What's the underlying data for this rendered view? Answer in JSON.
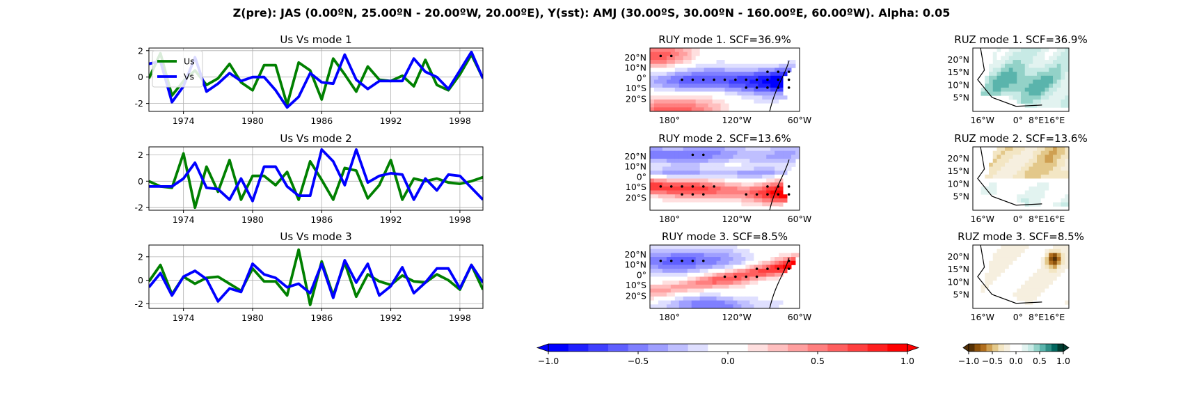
{
  "suptitle": "Z(pre): JAS (0.00ºN, 25.00ºN - 20.00ºW, 20.00ºE), Y(sst): AMJ (30.00ºS, 30.00ºN - 160.00ºE, 60.00ºW). Alpha: 0.05",
  "colors": {
    "us": "#008000",
    "vs": "#0000ff",
    "grid": "#b0b0b0"
  },
  "chart_data": [
    {
      "type": "line",
      "title": "Us Vs mode 1",
      "x": [
        1971,
        1972,
        1973,
        1974,
        1975,
        1976,
        1977,
        1978,
        1979,
        1980,
        1981,
        1982,
        1983,
        1984,
        1985,
        1986,
        1987,
        1988,
        1989,
        1990,
        1991,
        1992,
        1993,
        1994,
        1995,
        1996,
        1997,
        1998,
        1999,
        2000
      ],
      "series": [
        {
          "name": "Us",
          "values": [
            -0.1,
            1.8,
            -1.4,
            -0.3,
            0.5,
            -0.6,
            -0.1,
            1.0,
            -0.4,
            -1.0,
            0.9,
            0.9,
            -2.1,
            1.1,
            0.5,
            -1.7,
            1.4,
            0.2,
            -1.1,
            0.8,
            -0.2,
            -0.3,
            0.1,
            -0.7,
            1.3,
            -0.6,
            -1.0,
            0.2,
            1.7,
            -0.1
          ]
        },
        {
          "name": "Vs",
          "values": [
            1.0,
            1.2,
            -1.9,
            -0.7,
            1.5,
            -1.1,
            -0.5,
            0.3,
            -0.3,
            0.0,
            0.0,
            -1.0,
            -2.3,
            -1.5,
            0.3,
            -0.4,
            -0.5,
            1.7,
            -0.2,
            -0.9,
            -0.3,
            -0.3,
            -0.3,
            1.4,
            0.4,
            0.0,
            -0.9,
            0.5,
            1.9,
            -0.1
          ]
        }
      ],
      "xticks": [
        1974,
        1980,
        1986,
        1992,
        1998
      ],
      "yticks": [
        -2,
        0,
        2
      ],
      "xlim": [
        1971,
        2000
      ],
      "ylim": [
        -2.6,
        2.2
      ],
      "legend": "top-left",
      "grid": true
    },
    {
      "type": "line",
      "title": "Us Vs mode 2",
      "x": [
        1971,
        1972,
        1973,
        1974,
        1975,
        1976,
        1977,
        1978,
        1979,
        1980,
        1981,
        1982,
        1983,
        1984,
        1985,
        1986,
        1987,
        1988,
        1989,
        1990,
        1991,
        1992,
        1993,
        1994,
        1995,
        1996,
        1997,
        1998,
        1999,
        2000
      ],
      "series": [
        {
          "name": "Us",
          "values": [
            0.0,
            -0.4,
            -0.5,
            2.1,
            -2.0,
            1.1,
            -0.8,
            1.6,
            -1.4,
            0.4,
            0.4,
            -0.3,
            0.7,
            -1.4,
            1.5,
            0.1,
            -1.4,
            1.0,
            0.8,
            -1.3,
            -0.3,
            1.6,
            -1.4,
            0.2,
            0.0,
            0.2,
            -0.1,
            -0.2,
            0.0,
            0.3
          ]
        },
        {
          "name": "Vs",
          "values": [
            -0.4,
            -0.4,
            -0.4,
            0.2,
            1.4,
            -0.5,
            -0.6,
            -1.4,
            0.2,
            -1.5,
            1.1,
            1.1,
            -0.4,
            -1.1,
            -1.1,
            2.4,
            1.5,
            -0.3,
            2.4,
            -0.1,
            0.4,
            0.6,
            0.5,
            -1.4,
            0.2,
            -0.7,
            0.5,
            0.4,
            -0.5,
            -1.4
          ]
        }
      ],
      "xticks": [
        1974,
        1980,
        1986,
        1992,
        1998
      ],
      "yticks": [
        -2,
        0,
        2
      ],
      "xlim": [
        1971,
        2000
      ],
      "ylim": [
        -2.2,
        2.6
      ],
      "grid": true
    },
    {
      "type": "line",
      "title": "Us Vs mode 3",
      "x": [
        1971,
        1972,
        1973,
        1974,
        1975,
        1976,
        1977,
        1978,
        1979,
        1980,
        1981,
        1982,
        1983,
        1984,
        1985,
        1986,
        1987,
        1988,
        1989,
        1990,
        1991,
        1992,
        1993,
        1994,
        1995,
        1996,
        1997,
        1998,
        1999,
        2000
      ],
      "series": [
        {
          "name": "Us",
          "values": [
            -0.1,
            1.3,
            -1.2,
            0.3,
            -0.3,
            0.2,
            0.3,
            -0.3,
            -0.9,
            1.0,
            -0.1,
            -0.1,
            -1.3,
            2.6,
            -2.1,
            1.6,
            -1.3,
            1.5,
            -1.4,
            0.5,
            -0.1,
            -0.4,
            0.4,
            -0.1,
            -0.2,
            0.5,
            0.0,
            -0.8,
            1.3,
            -0.8
          ]
        },
        {
          "name": "Vs",
          "values": [
            -0.6,
            0.6,
            -1.3,
            0.3,
            0.8,
            0.1,
            -1.8,
            -0.7,
            -1.0,
            1.4,
            0.5,
            0.2,
            -0.6,
            -0.3,
            -1.1,
            1.4,
            -1.5,
            1.7,
            -0.2,
            1.4,
            -1.3,
            -0.5,
            1.1,
            -1.1,
            -0.2,
            1.0,
            1.0,
            -0.7,
            1.3,
            -0.2
          ]
        }
      ],
      "xticks": [
        1974,
        1980,
        1986,
        1992,
        1998
      ],
      "yticks": [
        -2,
        0,
        2
      ],
      "xlim": [
        1971,
        2000
      ],
      "ylim": [
        -2.4,
        3.0
      ],
      "grid": true
    },
    {
      "type": "heatmap",
      "title": "RUY mode 1. SCF=36.9%",
      "pattern": "cold-tongue-negative",
      "xticklabels": [
        "180°",
        "120°W",
        "60°W"
      ],
      "yticklabels": [
        "20°N",
        "10°N",
        "0°",
        "10°S",
        "20°S"
      ]
    },
    {
      "type": "heatmap",
      "title": "RUY mode 2. SCF=13.6%",
      "pattern": "southern-band-positive",
      "xticklabels": [
        "180°",
        "120°W",
        "60°W"
      ],
      "yticklabels": [
        "20°N",
        "10°N",
        "0°",
        "10°S",
        "20°S"
      ]
    },
    {
      "type": "heatmap",
      "title": "RUY mode 3. SCF=8.5%",
      "pattern": "equatorial-positive-band",
      "xticklabels": [
        "180°",
        "120°W",
        "60°W"
      ],
      "yticklabels": [
        "20°N",
        "10°N",
        "0°",
        "10°S",
        "20°S"
      ]
    },
    {
      "type": "heatmap",
      "title": "RUZ mode 1. SCF=36.9%",
      "pattern": "sahel-positive",
      "xticklabels": [
        "16°W",
        "0°",
        "8°E",
        "16°E"
      ],
      "yticklabels": [
        "20°N",
        "15°N",
        "10°N",
        "5°N"
      ]
    },
    {
      "type": "heatmap",
      "title": "RUZ mode 2. SCF=13.6%",
      "pattern": "north-negative-south-positive",
      "xticklabels": [
        "16°W",
        "0°",
        "8°E",
        "16°E"
      ],
      "yticklabels": [
        "20°N",
        "15°N",
        "10°N",
        "5°N"
      ]
    },
    {
      "type": "heatmap",
      "title": "RUZ mode 3. SCF=8.5%",
      "pattern": "weak-negative-with-spot",
      "xticklabels": [
        "16°W",
        "0°",
        "8°E",
        "16°E"
      ],
      "yticklabels": [
        "20°N",
        "15°N",
        "10°N",
        "5°N"
      ]
    }
  ],
  "colorbars": [
    {
      "name": "bwr",
      "colors": [
        "#0000ff",
        "#1f1fff",
        "#3f3fff",
        "#5f5fff",
        "#7f7fff",
        "#9f9fff",
        "#bfbfff",
        "#dfdfff",
        "#ffffff",
        "#ffffff",
        "#ffdfdf",
        "#ffbfbf",
        "#ff9f9f",
        "#ff7f7f",
        "#ff5f5f",
        "#ff3f3f",
        "#ff1f1f",
        "#ff0000"
      ],
      "ticklabels": [
        "−1.0",
        "−0.5",
        "0.0",
        "0.5",
        "1.0"
      ]
    },
    {
      "name": "BrBG",
      "colors": [
        "#543005",
        "#8c510a",
        "#b06e1e",
        "#cfa052",
        "#e3c88a",
        "#f3e6c4",
        "#f6efdf",
        "#ffffff",
        "#ffffff",
        "#e2f3f0",
        "#c7eae5",
        "#93d2c8",
        "#5ab4ac",
        "#2e8f86",
        "#01665e",
        "#003c30"
      ],
      "ticklabels": [
        "−1.0",
        "−0.5",
        "0.0",
        "0.5",
        "1.0"
      ]
    }
  ]
}
